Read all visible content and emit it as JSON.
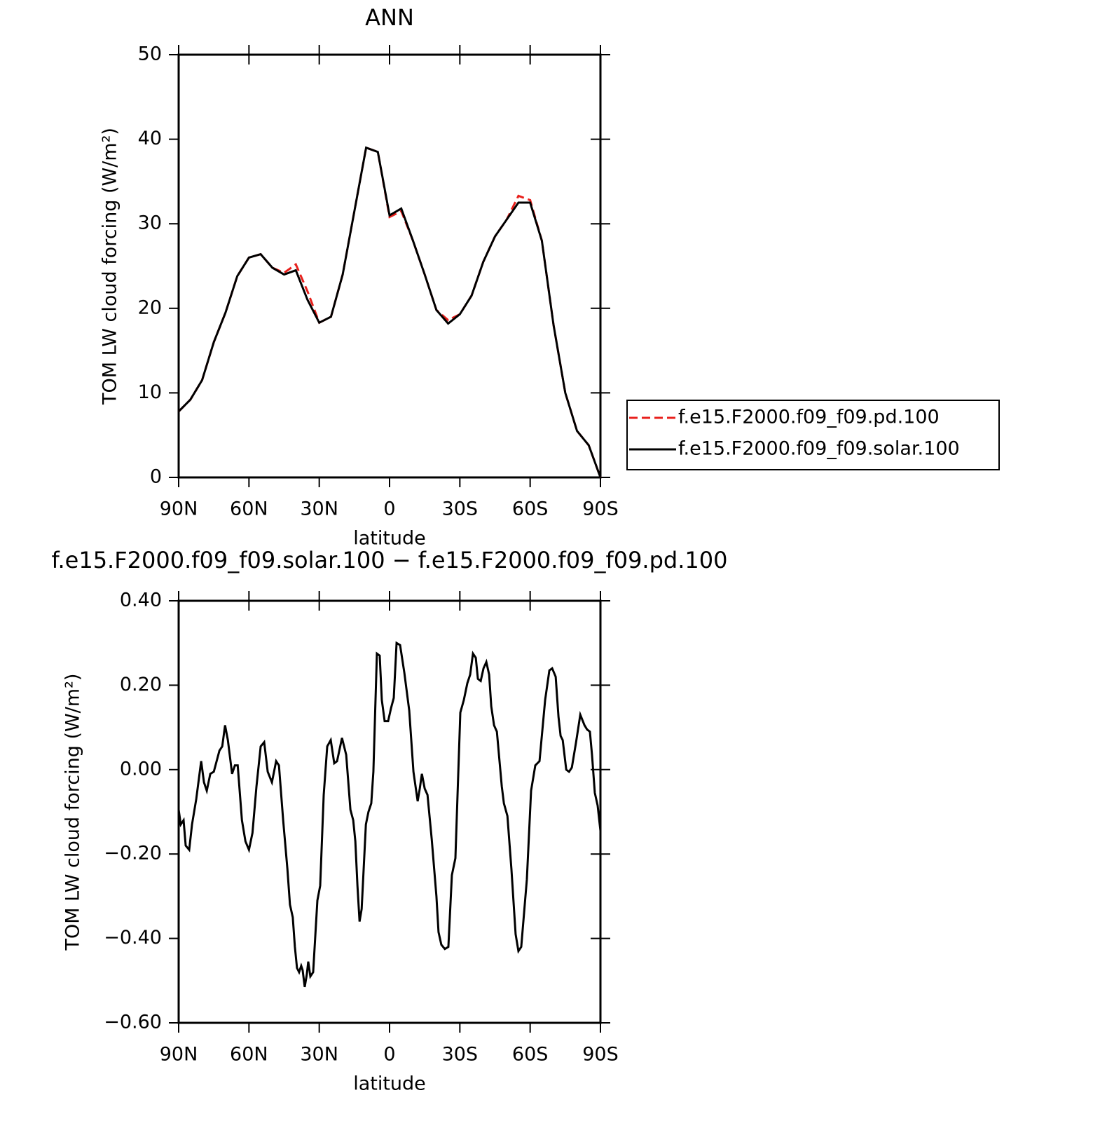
{
  "chart_data": [
    {
      "type": "line",
      "title": "ANN",
      "xlabel": "latitude",
      "ylabel": "TOM LW cloud forcing (W/m²)",
      "x": [
        90,
        85,
        80,
        75,
        70,
        65,
        60,
        55,
        50,
        45,
        40,
        35,
        30,
        25,
        20,
        15,
        10,
        5,
        0,
        -5,
        -10,
        -15,
        -20,
        -25,
        -30,
        -35,
        -40,
        -45,
        -50,
        -55,
        -60,
        -65,
        -70,
        -75,
        -80,
        -85,
        -90
      ],
      "series": [
        {
          "name": "f.e15.F2000.f09_f09.pd.100",
          "color": "#e8201c",
          "dash": true,
          "values": [
            7.8,
            9.2,
            11.5,
            16.0,
            19.5,
            23.8,
            26.0,
            26.4,
            24.8,
            24.2,
            25.2,
            22.0,
            18.3,
            19.0,
            24.0,
            31.5,
            39.0,
            38.5,
            30.8,
            31.5,
            28.0,
            24.0,
            19.8,
            18.6,
            19.3,
            21.5,
            25.5,
            28.5,
            30.5,
            33.3,
            32.8,
            28.0,
            18.0,
            10.0,
            5.5,
            3.8,
            0
          ]
        },
        {
          "name": "f.e15.F2000.f09_f09.solar.100",
          "color": "#000000",
          "dash": false,
          "values": [
            7.8,
            9.2,
            11.5,
            16.0,
            19.5,
            23.8,
            26.0,
            26.4,
            24.8,
            24.0,
            24.5,
            21.0,
            18.3,
            19.0,
            24.0,
            31.5,
            39.0,
            38.5,
            31.0,
            31.8,
            28.0,
            24.0,
            19.8,
            18.2,
            19.3,
            21.5,
            25.5,
            28.5,
            30.5,
            32.5,
            32.5,
            28.0,
            18.0,
            10.0,
            5.5,
            3.8,
            0
          ]
        }
      ],
      "xlim": [
        90,
        -90
      ],
      "xticks": [
        {
          "value": 90,
          "label": "90N"
        },
        {
          "value": 60,
          "label": "60N"
        },
        {
          "value": 30,
          "label": "30N"
        },
        0,
        {
          "value": -30,
          "label": "30S"
        },
        {
          "value": -60,
          "label": "60S"
        },
        {
          "value": -90,
          "label": "90S"
        }
      ],
      "ylim": [
        0,
        50
      ],
      "yticks": [
        0,
        10,
        20,
        30,
        40,
        50
      ],
      "legend": "right"
    },
    {
      "type": "line",
      "title": "f.e15.F2000.f09_f09.solar.100 − f.e15.F2000.f09_f09.pd.100",
      "xlabel": "latitude",
      "ylabel": "TOM LW cloud forcing (W/m²)",
      "x": [
        90,
        89.1,
        87.9,
        87.0,
        85.5,
        84.3,
        82.5,
        80.4,
        79.2,
        78.0,
        76.5,
        75.0,
        72.6,
        71.4,
        70.2,
        69.0,
        67.2,
        66.0,
        64.8,
        63.0,
        61.5,
        60.0,
        58.5,
        56.8,
        55.0,
        53.5,
        52.0,
        50.2,
        48.4,
        47.2,
        45.4,
        43.6,
        42.5,
        41.3,
        40.4,
        39.5,
        38.6,
        37.7,
        37.1,
        36.2,
        35.3,
        34.7,
        33.8,
        32.6,
        30.8,
        29.6,
        28.1,
        26.6,
        25.1,
        23.6,
        22.4,
        20.3,
        18.5,
        16.7,
        15.5,
        14.6,
        13.7,
        12.8,
        11.9,
        10.1,
        9.0,
        7.8,
        6.9,
        5.4,
        4.2,
        3.3,
        2.1,
        0.6,
        -0.6,
        -1.8,
        -3.0,
        -4.5,
        -6.3,
        -8.4,
        -10.2,
        -12.0,
        -12.9,
        -13.8,
        -15.0,
        -16.2,
        -18.0,
        -20.0,
        -20.9,
        -22.1,
        -23.6,
        -25.1,
        -26.6,
        -28.1,
        -30.2,
        -31.7,
        -33.2,
        -34.4,
        -35.6,
        -36.8,
        -37.7,
        -38.9,
        -40.1,
        -41.3,
        -42.5,
        -43.4,
        -44.6,
        -45.8,
        -47.9,
        -48.8,
        -50.3,
        -52.0,
        -53.8,
        -55.0,
        -56.2,
        -58.6,
        -60.4,
        -62.2,
        -64.0,
        -66.4,
        -68.2,
        -69.4,
        -70.9,
        -72.1,
        -73.0,
        -73.9,
        -75.4,
        -76.6,
        -77.8,
        -79.6,
        -81.4,
        -83.2,
        -84.3,
        -85.5,
        -86.4,
        -87.6,
        -88.8,
        -90.0
      ],
      "color": "#000000",
      "values": [
        -0.095,
        -0.13,
        -0.12,
        -0.18,
        -0.19,
        -0.13,
        -0.07,
        0.02,
        -0.03,
        -0.05,
        -0.01,
        -0.005,
        0.045,
        0.055,
        0.105,
        0.07,
        -0.01,
        0.01,
        0.01,
        -0.12,
        -0.17,
        -0.19,
        -0.15,
        -0.04,
        0.055,
        0.065,
        -0.005,
        -0.03,
        0.02,
        0.01,
        -0.12,
        -0.235,
        -0.32,
        -0.35,
        -0.42,
        -0.47,
        -0.48,
        -0.465,
        -0.475,
        -0.515,
        -0.485,
        -0.455,
        -0.49,
        -0.48,
        -0.31,
        -0.275,
        -0.06,
        0.055,
        0.07,
        0.015,
        0.02,
        0.075,
        0.035,
        -0.095,
        -0.12,
        -0.17,
        -0.275,
        -0.36,
        -0.33,
        -0.13,
        -0.1,
        -0.08,
        -0.005,
        0.275,
        0.27,
        0.165,
        0.115,
        0.115,
        0.145,
        0.17,
        0.3,
        0.295,
        0.23,
        0.14,
        -0.005,
        -0.075,
        -0.045,
        -0.01,
        -0.045,
        -0.06,
        -0.165,
        -0.3,
        -0.385,
        -0.415,
        -0.425,
        -0.42,
        -0.25,
        -0.21,
        0.135,
        0.165,
        0.205,
        0.225,
        0.275,
        0.265,
        0.215,
        0.21,
        0.24,
        0.255,
        0.225,
        0.15,
        0.105,
        0.09,
        -0.04,
        -0.08,
        -0.11,
        -0.235,
        -0.39,
        -0.43,
        -0.42,
        -0.26,
        -0.05,
        0.01,
        0.02,
        0.165,
        0.235,
        0.24,
        0.22,
        0.125,
        0.08,
        0.07,
        0,
        -0.005,
        0.005,
        0.065,
        0.13,
        0.105,
        0.095,
        0.09,
        0.035,
        -0.055,
        -0.085,
        -0.145
      ],
      "xlim": [
        90,
        -90
      ],
      "xticks": [
        {
          "value": 90,
          "label": "90N"
        },
        {
          "value": 60,
          "label": "60N"
        },
        {
          "value": 30,
          "label": "30N"
        },
        0,
        {
          "value": -30,
          "label": "30S"
        },
        {
          "value": -60,
          "label": "60S"
        },
        {
          "value": -90,
          "label": "90S"
        }
      ],
      "ylim": [
        -0.6,
        0.4
      ],
      "yticks": [
        {
          "value": -0.6,
          "label": "−0.60"
        },
        {
          "value": -0.4,
          "label": "−0.40"
        },
        {
          "value": -0.2,
          "label": "−0.20"
        },
        {
          "value": 0,
          "label": "0.00"
        },
        {
          "value": 0.2,
          "label": "0.20"
        },
        {
          "value": 0.4,
          "label": "0.40"
        }
      ]
    }
  ]
}
